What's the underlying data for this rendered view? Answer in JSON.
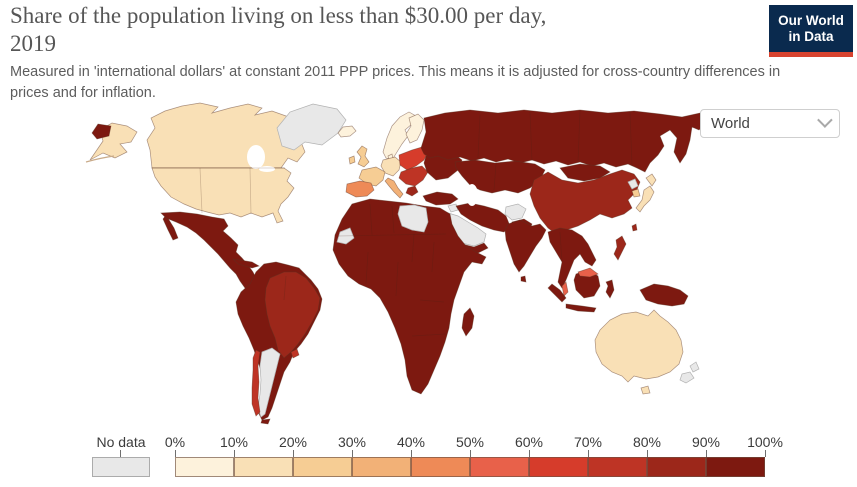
{
  "header": {
    "title_line1": "Share of the population living on less than $30.00 per day,",
    "title_line2": "2019",
    "subtitle": "Measured in 'international dollars' at constant 2011 PPP prices. This means it is adjusted for cross-country differences in prices and for inflation.",
    "logo_line1": "Our World",
    "logo_line2": "in Data",
    "logo_bg_color": "#0A2A4E",
    "logo_accent_color": "#D8432F"
  },
  "controls": {
    "region_selector_value": "World"
  },
  "legend": {
    "no_data_label": "No data",
    "tick_labels": [
      "0%",
      "10%",
      "20%",
      "30%",
      "40%",
      "50%",
      "60%",
      "70%",
      "80%",
      "90%",
      "100%"
    ]
  },
  "chart_data": {
    "type": "choropleth",
    "title": "Share of the population living on less than $30.00 per day",
    "year": "2019",
    "unit": "% of population",
    "legend_position": "bottom",
    "legend_bins": [
      {
        "label": "0%-10%",
        "color": "#FDF2DC"
      },
      {
        "label": "10%-20%",
        "color": "#F9E0B6"
      },
      {
        "label": "20%-30%",
        "color": "#F6CD94"
      },
      {
        "label": "30%-40%",
        "color": "#F2B177"
      },
      {
        "label": "40%-50%",
        "color": "#EE8A57"
      },
      {
        "label": "50%-60%",
        "color": "#E8614A"
      },
      {
        "label": "60%-70%",
        "color": "#D63C2B"
      },
      {
        "label": "70%-80%",
        "color": "#BE3425"
      },
      {
        "label": "80%-90%",
        "color": "#9C271A"
      },
      {
        "label": "90%-100%",
        "color": "#7D1910"
      }
    ],
    "no_data_color": "#E8E8E8",
    "regions": {
      "canada": "10%-20%",
      "united-states": "10%-20%",
      "alaska": "10%-20%",
      "chukotka": "90%-100%",
      "greenland": "no-data",
      "mexico-central-america": "90%-100%",
      "baja-california": "90%-100%",
      "cuba": "90%-100%",
      "hispaniola": "90%-100%",
      "andean-south-america": "90%-100%",
      "brazil": "80%-90%",
      "argentina": "no-data",
      "chile": "70%-80%",
      "uruguay": "70%-80%",
      "tierra-del-fuego": "90%-100%",
      "iceland": "0%-10%",
      "scandinavia": "0%-10%",
      "finland": "0%-10%",
      "denmark": "0%-10%",
      "united-kingdom": "20%-30%",
      "ireland": "20%-30%",
      "france": "20%-30%",
      "central-europe": "10%-20%",
      "iberia": "40%-50%",
      "italy": "30%-40%",
      "eastern-europe": "60%-70%",
      "balkans": "70%-80%",
      "greece": "80%-90%",
      "ukraine": "90%-100%",
      "russia": "90%-100%",
      "central-asia": "90%-100%",
      "turkey": "90%-100%",
      "syria": "no-data",
      "iran-iraq": "90%-100%",
      "afghanistan": "no-data",
      "pakistan": "90%-100%",
      "arabian-peninsula": "no-data",
      "yemen-oman": "90%-100%",
      "india": "90%-100%",
      "sri-lanka": "90%-100%",
      "mongolia": "90%-100%",
      "china": "80%-90%",
      "north-korea": "no-data",
      "south-korea": "20%-30%",
      "japan-hokkaido": "10%-20%",
      "japan-honshu": "10%-20%",
      "taiwan": "80%-90%",
      "indochina": "90%-100%",
      "malay-peninsula-malaysia": "50%-60%",
      "malaysia-borneo": "50%-60%",
      "philippines": "80%-90%",
      "sumatra": "90%-100%",
      "java": "90%-100%",
      "borneo-indonesia": "90%-100%",
      "sulawesi": "90%-100%",
      "new-guinea": "90%-100%",
      "australia": "10%-20%",
      "tasmania": "10%-20%",
      "new-zealand-north": "no-data",
      "new-zealand-south": "no-data",
      "africa": "90%-100%",
      "libya": "no-data",
      "western-sahara": "no-data",
      "madagascar": "90%-100%"
    }
  }
}
